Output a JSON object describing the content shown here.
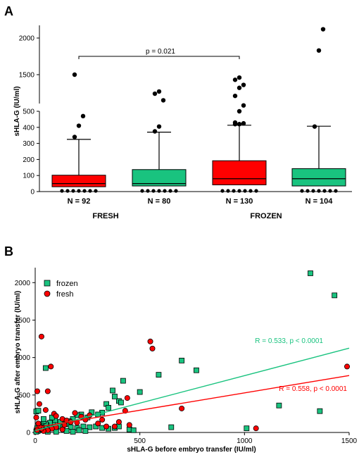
{
  "colors": {
    "fresh": "#ff0000",
    "frozen": "#19c37f",
    "point": "#000000"
  },
  "chart_data": [
    {
      "panel": "A",
      "type": "box",
      "ylabel": "sHLA-G (IU/ml)",
      "y_axis_lower": {
        "range": [
          0,
          500
        ],
        "ticks": [
          "0",
          "100",
          "200",
          "300",
          "400",
          "500"
        ]
      },
      "y_axis_upper": {
        "range": [
          1000,
          2200
        ],
        "ticks": [
          "1500",
          "2000"
        ],
        "axis_break": true
      },
      "groups": [
        "FRESH",
        "FROZEN"
      ],
      "annotation": "p = 0.021",
      "boxes": [
        {
          "label": "N = 92",
          "color": "fresh",
          "min": 0,
          "q1": 30,
          "median": 50,
          "q3": 102,
          "whisker_high": 325,
          "outliers": [
            340,
            410,
            470,
            1500
          ]
        },
        {
          "label": "N = 80",
          "color": "frozen",
          "min": 0,
          "q1": 35,
          "median": 50,
          "q3": 137,
          "whisker_high": 370,
          "outliers": [
            375,
            405,
            1150,
            1240,
            1270
          ]
        },
        {
          "label": "N = 130",
          "color": "fresh",
          "min": 0,
          "q1": 42,
          "median": 80,
          "q3": 192,
          "whisker_high": 413,
          "outliers": [
            420,
            420,
            425,
            430,
            1000,
            1080,
            1210,
            1320,
            1360,
            1430,
            1460
          ]
        },
        {
          "label": "N = 104",
          "color": "frozen",
          "min": 0,
          "q1": 35,
          "median": 80,
          "q3": 143,
          "whisker_high": 407,
          "outliers": [
            405,
            1830,
            2120
          ]
        }
      ]
    },
    {
      "panel": "B",
      "type": "scatter",
      "xlabel": "sHLA-G before embryo transfer (IU/ml)",
      "ylabel": "sHLA-G after embryo transfer (IU/ml)",
      "xlim": [
        0,
        1500
      ],
      "ylim": [
        0,
        2200
      ],
      "x_ticks": [
        "0",
        "500",
        "1000",
        "1500"
      ],
      "y_ticks": [
        "0",
        "500",
        "1000",
        "1500",
        "2000"
      ],
      "legend": [
        "frozen",
        "fresh"
      ],
      "series": [
        {
          "name": "frozen",
          "color": "frozen",
          "marker": "square",
          "regression": {
            "x": [
              0,
              1500
            ],
            "y": [
              25,
              1125
            ],
            "label": "R = 0.533, p < 0.0001"
          },
          "points": [
            [
              1315,
              2125
            ],
            [
              1430,
              1830
            ],
            [
              1165,
              360
            ],
            [
              1360,
              285
            ],
            [
              1010,
              55
            ],
            [
              770,
              830
            ],
            [
              700,
              960
            ],
            [
              650,
              70
            ],
            [
              590,
              770
            ],
            [
              500,
              540
            ],
            [
              420,
              690
            ],
            [
              400,
              420
            ],
            [
              410,
              400
            ],
            [
              370,
              560
            ],
            [
              380,
              480
            ],
            [
              340,
              380
            ],
            [
              350,
              330
            ],
            [
              320,
              265
            ],
            [
              300,
              240
            ],
            [
              270,
              270
            ],
            [
              250,
              200
            ],
            [
              220,
              240
            ],
            [
              200,
              230
            ],
            [
              180,
              180
            ],
            [
              160,
              150
            ],
            [
              150,
              110
            ],
            [
              140,
              110
            ],
            [
              130,
              90
            ],
            [
              120,
              140
            ],
            [
              110,
              80
            ],
            [
              100,
              50
            ],
            [
              95,
              160
            ],
            [
              85,
              100
            ],
            [
              75,
              70
            ],
            [
              70,
              130
            ],
            [
              60,
              50
            ],
            [
              55,
              95
            ],
            [
              50,
              110
            ],
            [
              45,
              60
            ],
            [
              40,
              150
            ],
            [
              35,
              40
            ],
            [
              30,
              90
            ],
            [
              28,
              70
            ],
            [
              25,
              60
            ],
            [
              22,
              50
            ],
            [
              20,
              40
            ],
            [
              18,
              110
            ],
            [
              15,
              30
            ],
            [
              12,
              20
            ],
            [
              10,
              60
            ],
            [
              8,
              40
            ],
            [
              6,
              20
            ],
            [
              5,
              10
            ],
            [
              5,
              280
            ],
            [
              15,
              290
            ],
            [
              40,
              180
            ],
            [
              50,
              860
            ],
            [
              80,
              200
            ],
            [
              90,
              60
            ],
            [
              170,
              70
            ],
            [
              200,
              60
            ],
            [
              230,
              80
            ],
            [
              260,
              70
            ],
            [
              290,
              80
            ],
            [
              320,
              60
            ],
            [
              350,
              50
            ],
            [
              380,
              60
            ],
            [
              400,
              80
            ],
            [
              450,
              40
            ],
            [
              470,
              30
            ],
            [
              100,
              10
            ],
            [
              60,
              10
            ],
            [
              150,
              20
            ],
            [
              180,
              10
            ],
            [
              210,
              30
            ],
            [
              240,
              20
            ]
          ]
        },
        {
          "name": "fresh",
          "color": "fresh",
          "marker": "circle",
          "regression": {
            "x": [
              0,
              1500
            ],
            "y": [
              65,
              760
            ],
            "label": "R = 0.558, p < 0.0001"
          },
          "points": [
            [
              30,
              1280
            ],
            [
              75,
              880
            ],
            [
              550,
              1215
            ],
            [
              560,
              1120
            ],
            [
              1490,
              880
            ],
            [
              700,
              320
            ],
            [
              1055,
              55
            ],
            [
              440,
              460
            ],
            [
              430,
              290
            ],
            [
              380,
              80
            ],
            [
              60,
              550
            ],
            [
              10,
              550
            ],
            [
              20,
              380
            ],
            [
              50,
              300
            ],
            [
              90,
              250
            ],
            [
              100,
              220
            ],
            [
              130,
              180
            ],
            [
              150,
              160
            ],
            [
              170,
              140
            ],
            [
              200,
              130
            ],
            [
              190,
              260
            ],
            [
              220,
              210
            ],
            [
              240,
              170
            ],
            [
              260,
              230
            ],
            [
              300,
              120
            ],
            [
              340,
              80
            ],
            [
              130,
              40
            ],
            [
              100,
              70
            ],
            [
              80,
              50
            ],
            [
              60,
              30
            ],
            [
              40,
              20
            ],
            [
              30,
              50
            ],
            [
              20,
              80
            ],
            [
              10,
              30
            ],
            [
              15,
              120
            ],
            [
              5,
              200
            ],
            [
              140,
              100
            ],
            [
              320,
              170
            ],
            [
              400,
              140
            ],
            [
              450,
              100
            ]
          ]
        }
      ]
    }
  ],
  "panels": {
    "a_label": "A",
    "b_label": "B"
  }
}
